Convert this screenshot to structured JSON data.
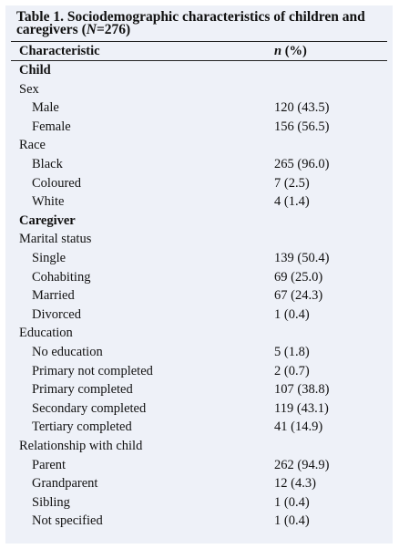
{
  "table": {
    "caption_main": "Table 1. Sociodemographic characteristics of children and caregivers (",
    "caption_n": "N",
    "caption_tail": "=276)",
    "header": {
      "characteristic": "Characteristic",
      "n_italic": "n",
      "pct": " (%)"
    },
    "rows": [
      {
        "label": "Child",
        "value": "",
        "kind": "group"
      },
      {
        "label": "Sex",
        "value": "",
        "kind": "cat"
      },
      {
        "label": "Male",
        "value": "120 (43.5)",
        "kind": "sub"
      },
      {
        "label": "Female",
        "value": "156 (56.5)",
        "kind": "sub"
      },
      {
        "label": "Race",
        "value": "",
        "kind": "cat"
      },
      {
        "label": "Black",
        "value": "265 (96.0)",
        "kind": "sub"
      },
      {
        "label": "Coloured",
        "value": "7 (2.5)",
        "kind": "sub"
      },
      {
        "label": "White",
        "value": "4 (1.4)",
        "kind": "sub"
      },
      {
        "label": "Caregiver",
        "value": "",
        "kind": "group"
      },
      {
        "label": "Marital status",
        "value": "",
        "kind": "cat"
      },
      {
        "label": "Single",
        "value": "139 (50.4)",
        "kind": "sub"
      },
      {
        "label": "Cohabiting",
        "value": "69 (25.0)",
        "kind": "sub"
      },
      {
        "label": "Married",
        "value": "67 (24.3)",
        "kind": "sub"
      },
      {
        "label": "Divorced",
        "value": "1 (0.4)",
        "kind": "sub"
      },
      {
        "label": "Education",
        "value": "",
        "kind": "cat"
      },
      {
        "label": "No education",
        "value": "5 (1.8)",
        "kind": "sub"
      },
      {
        "label": "Primary not completed",
        "value": "2 (0.7)",
        "kind": "sub"
      },
      {
        "label": "Primary completed",
        "value": "107 (38.8)",
        "kind": "sub"
      },
      {
        "label": "Secondary completed",
        "value": "119 (43.1)",
        "kind": "sub"
      },
      {
        "label": "Tertiary completed",
        "value": "41 (14.9)",
        "kind": "sub"
      },
      {
        "label": "Relationship with child",
        "value": "",
        "kind": "cat"
      },
      {
        "label": "Parent",
        "value": "262 (94.9)",
        "kind": "sub"
      },
      {
        "label": "Grandparent",
        "value": "12 (4.3)",
        "kind": "sub"
      },
      {
        "label": "Sibling",
        "value": "1 (0.4)",
        "kind": "sub"
      },
      {
        "label": "Not specified",
        "value": "1 (0.4)",
        "kind": "sub"
      }
    ]
  }
}
